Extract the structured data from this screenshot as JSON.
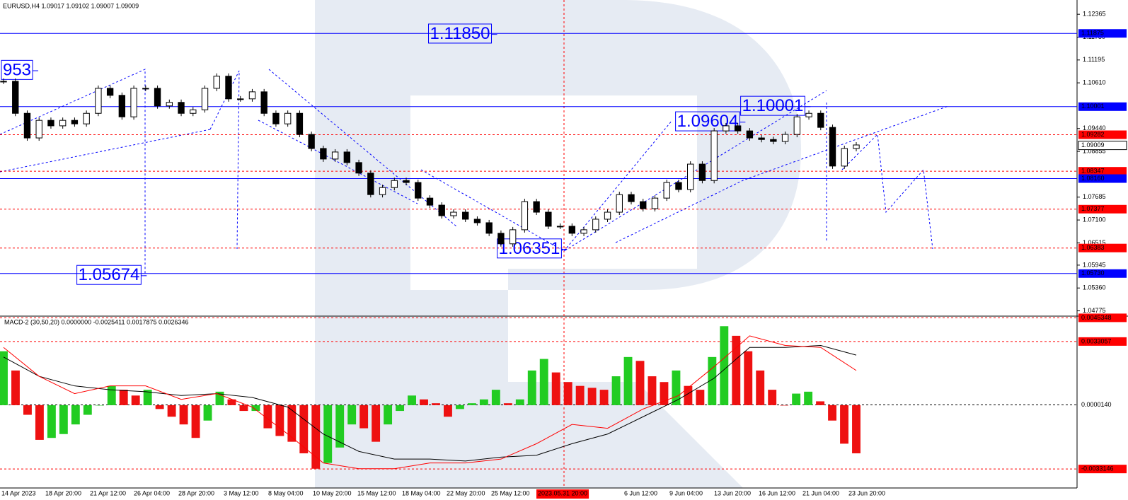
{
  "header": "EURUSD,H4  1.09017 1.09102 1.09007 1.09009",
  "chart_data": [
    {
      "type": "candlestick",
      "values": [
        1.1065,
        1.0983,
        1.092,
        1.0965,
        1.0951,
        1.0965,
        1.0956,
        1.0983,
        1.1047,
        1.1029,
        1.0974,
        1.1047,
        1.1047,
        1.1002,
        1.1011,
        1.0983,
        1.0992,
        1.1047,
        1.1078,
        1.102,
        1.102,
        1.1038,
        1.0983,
        1.0956,
        1.0983,
        1.0929,
        1.0893,
        1.0866,
        1.0884,
        1.0857,
        1.083,
        1.0775,
        1.0793,
        1.0811,
        1.0806,
        1.0766,
        1.0748,
        1.0721,
        1.073,
        1.0712,
        1.0703,
        1.0676,
        1.0649,
        1.0685,
        1.0757,
        1.073,
        1.0694,
        1.0694,
        1.0676,
        1.0685,
        1.0712,
        1.073,
        1.0775,
        1.0757,
        1.0739,
        1.0766,
        1.0806,
        1.0788,
        1.0853,
        1.0811,
        1.0938,
        1.0951,
        1.0938,
        1.092,
        1.0916,
        1.0911,
        1.0929,
        1.0974,
        1.0983,
        1.0947,
        1.0848,
        1.0893,
        1.0902
      ],
      "ylim": [
        1.0464,
        1.1273
      ],
      "yticks": [
        1.12365,
        {
          "value": 1.1178,
          "label": "1.11780"
        },
        1.11195,
        {
          "value": 1.1061,
          "label": "1.10610"
        },
        {
          "value": 1.0944,
          "label": "1.09440"
        },
        1.08855,
        1.07685,
        {
          "value": 1.071,
          "label": "1.07100"
        },
        1.06515,
        1.05945,
        {
          "value": 1.0536,
          "label": "1.05360"
        },
        1.04775
      ],
      "levels": [
        {
          "value": 1.11875,
          "label": "1.11875",
          "color": "#0000ff",
          "style": "solid"
        },
        {
          "value": 1.10001,
          "label": "1.10001",
          "color": "#0000ff",
          "style": "solid"
        },
        {
          "value": 1.09282,
          "label": "1.09282",
          "color": "#ff0000",
          "style": "dashed"
        },
        {
          "value": 1.09009,
          "label": "1.09009",
          "color": "#000000",
          "style": "none"
        },
        {
          "value": 1.08347,
          "label": "1.08347",
          "color": "#ff0000",
          "style": "dashed"
        },
        {
          "value": 1.0816,
          "label": "1.08160",
          "color": "#0000ff",
          "style": "solid"
        },
        {
          "value": 1.07377,
          "label": "1.07377",
          "color": "#ff0000",
          "style": "dashed"
        },
        {
          "value": 1.06383,
          "label": "1.06383",
          "color": "#ff0000",
          "style": "dashed"
        },
        {
          "value": 1.0573,
          "label": "1.05730",
          "color": "#0000ff",
          "style": "solid"
        }
      ],
      "annotations": [
        {
          "label": "1.11850",
          "value": 1.1185
        },
        {
          "label": "953"
        },
        {
          "label": "1.10001",
          "value": 1.10001
        },
        {
          "label": "1.09604",
          "value": 1.09604
        },
        {
          "label": "1.06351",
          "value": 1.06351
        },
        {
          "label": "1.05674",
          "value": 1.05674
        }
      ],
      "time_labels": [
        "14 Apr 2023",
        "18 Apr 20:00",
        "21 Apr 12:00",
        "26 Apr 04:00",
        "28 Apr 20:00",
        "3 May 12:00",
        "8 May 04:00",
        "10 May 20:00",
        "15 May 12:00",
        "18 May 04:00",
        "22 May 20:00",
        "25 May 12:00",
        "2023.05.31 20:00",
        "6 Jun 12:00",
        "9 Jun 04:00",
        "13 Jun 20:00",
        "16 Jun 12:00",
        "21 Jun 04:00",
        "23 Jun 20:00"
      ]
    },
    {
      "type": "macd",
      "title": "MACD-2 (30,50,20) 0.0000000 -0.0025411 0.0017875 0.0026346",
      "values": [
        0.0028,
        0.0018,
        -0.0005,
        -0.0018,
        -0.0017,
        -0.0015,
        -0.001,
        -0.0005,
        0,
        0.001,
        0.0008,
        0.0005,
        0.0008,
        -0.0002,
        -0.0006,
        -0.001,
        -0.0017,
        -0.0008,
        0.0007,
        0.0003,
        -0.0003,
        -0.0003,
        -0.0012,
        -0.0016,
        -0.0019,
        -0.0025,
        -0.0033,
        -0.003,
        -0.0022,
        -0.001,
        -0.0012,
        -0.0019,
        -0.001,
        -0.0003,
        0.0005,
        0.0003,
        0.0001,
        -0.0006,
        -0.0002,
        0.0001,
        0.0003,
        0.0008,
        0.0001,
        0.0003,
        0.0018,
        0.0024,
        0.0017,
        0.0012,
        0.001,
        0.0009,
        0.0008,
        0.0015,
        0.0025,
        0.0023,
        0.0015,
        0.0012,
        0.0018,
        0.001,
        0.0008,
        0.0025,
        0.0041,
        0.0036,
        0.0028,
        0.0018,
        0.0008,
        0,
        0.0006,
        0.0007,
        0.0002,
        -0.0008,
        -0.002,
        -0.0025
      ],
      "series": [
        {
          "color": "#000000",
          "values": [
            0.0025,
            0.0015,
            0.001,
            0.0008,
            0.0007,
            0.0005,
            0.0006,
            0.0004,
            -0.0001,
            -0.0015,
            -0.0024,
            -0.0028,
            -0.0028,
            -0.0029,
            -0.0027,
            -0.0026,
            -0.002,
            -0.0015,
            -0.0006,
            0.0003,
            0.0014,
            0.003,
            0.003,
            0.0031,
            0.0026
          ]
        },
        {
          "color": "#ff0000",
          "values": [
            0.003,
            0.0015,
            0.0006,
            0.001,
            0.001,
            0.0003,
            0.0006,
            -0.0001,
            -0.0015,
            -0.003,
            -0.0033,
            -0.0033,
            -0.003,
            -0.003,
            -0.0028,
            -0.002,
            -0.001,
            -0.0012,
            -0.0002,
            0.0005,
            0.002,
            0.0036,
            0.0031,
            0.003,
            0.0018
          ]
        }
      ],
      "ylim": [
        -0.0043,
        0.00455
      ],
      "levels": [
        {
          "value": 0.0045348,
          "label": "0.0045348",
          "color": "#ff0000"
        },
        {
          "value": 0.0033057,
          "label": "0.0033057",
          "color": "#ff0000"
        },
        {
          "value": 1.4e-05,
          "label": "0.0000140",
          "color": "#000000"
        },
        {
          "value": -0.0033146,
          "label": "-0.0033146",
          "color": "#ff0000"
        }
      ]
    }
  ]
}
